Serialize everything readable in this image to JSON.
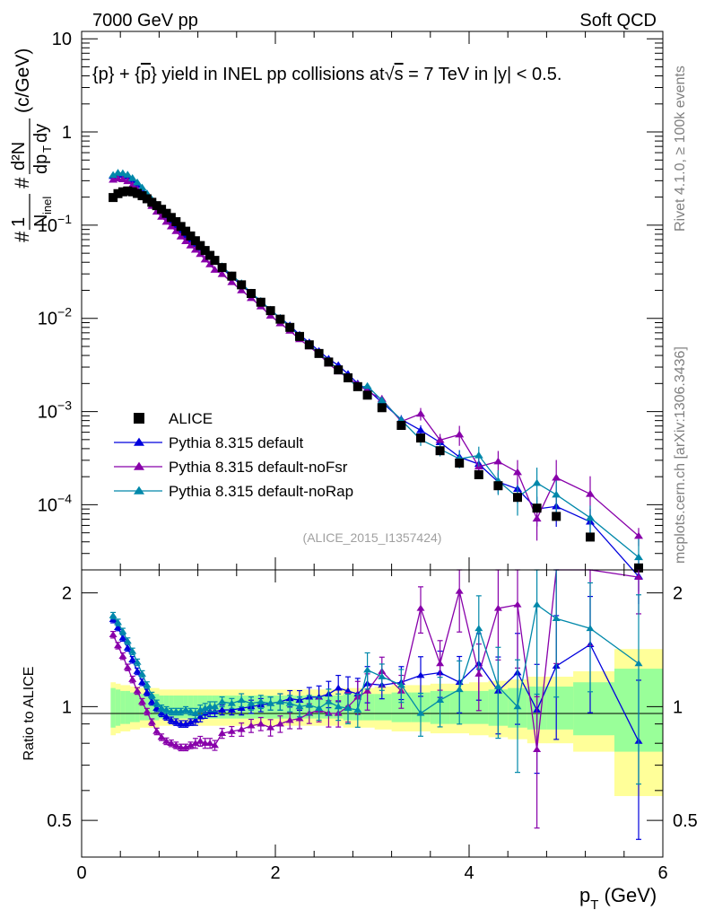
{
  "header": {
    "left": "7000 GeV pp",
    "right": "Soft QCD"
  },
  "title": {
    "part1": "{p} + {",
    "pbar": "p",
    "part2": "} yield in INEL pp collisions at",
    "sqrt": "√",
    "s": "s",
    "part3": " =  7 TeV in |y| < 0.5."
  },
  "side_labels": {
    "rivet": "Rivet 4.1.0, ≥ 100k events",
    "mcplots": "mcplots.cern.ch [arXiv:1306.3436]"
  },
  "analysis_tag": "(ALICE_2015_I1357424)",
  "ylabel_main": {
    "hash1": "#",
    "one": "1",
    "N": "N",
    "inel": "inel",
    "hash2": "#",
    "d2N": "d²N",
    "dp": "dp",
    "T": "T",
    "dy": "dy",
    "units": "(c/GeV)"
  },
  "ylabel_ratio": "Ratio to ALICE",
  "xlabel": {
    "p": "p",
    "T": "T",
    "rest": " (GeV)"
  },
  "legend": [
    {
      "label": "ALICE",
      "marker": "square",
      "color": "#000000"
    },
    {
      "label": "Pythia 8.315 default",
      "marker": "triangle",
      "color": "#0000dd"
    },
    {
      "label": "Pythia 8.315 default-noFsr",
      "marker": "triangle",
      "color": "#8800aa"
    },
    {
      "label": "Pythia 8.315 default-noRap",
      "marker": "triangle",
      "color": "#0088aa"
    }
  ],
  "colors": {
    "data": "#000000",
    "default": "#0000dd",
    "noFsr": "#8800aa",
    "noRap": "#0088aa",
    "band_inner": "#99ff99",
    "band_outer": "#ffff99"
  },
  "chart_data": {
    "type": "scatter",
    "xlabel": "p_T (GeV)",
    "ylabel": "1/N_inel d²N/dp_T dy (c/GeV)",
    "xlim": [
      0,
      6
    ],
    "ylim_main": [
      2e-05,
      12
    ],
    "ylim_ratio": [
      0.4,
      2.3
    ],
    "xticks": [
      "0",
      "2",
      "4",
      "6"
    ],
    "yticks_main": [
      "10^-4",
      "10^-3",
      "10^-2",
      "10^-1",
      "1",
      "10"
    ],
    "yticks_ratio": [
      "0.5",
      "1",
      "2"
    ],
    "x": [
      0.325,
      0.375,
      0.425,
      0.475,
      0.525,
      0.575,
      0.625,
      0.675,
      0.725,
      0.775,
      0.825,
      0.875,
      0.925,
      0.975,
      1.025,
      1.075,
      1.125,
      1.175,
      1.225,
      1.275,
      1.325,
      1.375,
      1.45,
      1.55,
      1.65,
      1.75,
      1.85,
      1.95,
      2.05,
      2.15,
      2.25,
      2.35,
      2.45,
      2.55,
      2.65,
      2.75,
      2.85,
      2.95,
      3.1,
      3.3,
      3.5,
      3.7,
      3.9,
      4.1,
      4.3,
      4.5,
      4.7,
      4.9,
      5.25,
      5.75
    ],
    "series": [
      {
        "name": "ALICE",
        "values": [
          0.198,
          0.218,
          0.228,
          0.233,
          0.228,
          0.219,
          0.207,
          0.192,
          0.176,
          0.162,
          0.148,
          0.134,
          0.121,
          0.109,
          0.0968,
          0.0862,
          0.0766,
          0.0681,
          0.0604,
          0.0535,
          0.0474,
          0.0419,
          0.0351,
          0.0284,
          0.0229,
          0.0185,
          0.0149,
          0.0121,
          0.0098,
          0.008,
          0.0064,
          0.0052,
          0.0042,
          0.0034,
          0.0028,
          0.0023,
          0.00185,
          0.0015,
          0.0011,
          0.00071,
          0.00052,
          0.00038,
          0.00028,
          0.00021,
          0.00016,
          0.00012,
          9.2e-05,
          7.5e-05,
          4.5e-05,
          2.1e-05
        ],
        "band_inner_low": [
          0.88,
          0.89,
          0.9,
          0.9,
          0.91,
          0.91,
          0.92,
          0.92,
          0.92,
          0.92,
          0.93,
          0.93,
          0.93,
          0.93,
          0.93,
          0.93,
          0.93,
          0.93,
          0.93,
          0.93,
          0.93,
          0.93,
          0.93,
          0.93,
          0.93,
          0.93,
          0.93,
          0.93,
          0.93,
          0.93,
          0.93,
          0.93,
          0.93,
          0.93,
          0.93,
          0.92,
          0.92,
          0.92,
          0.92,
          0.91,
          0.91,
          0.9,
          0.9,
          0.9,
          0.89,
          0.88,
          0.87,
          0.87,
          0.84,
          0.76
        ],
        "band_inner_high": [
          1.12,
          1.11,
          1.1,
          1.1,
          1.09,
          1.09,
          1.08,
          1.08,
          1.08,
          1.08,
          1.07,
          1.07,
          1.07,
          1.07,
          1.07,
          1.07,
          1.07,
          1.07,
          1.07,
          1.07,
          1.07,
          1.07,
          1.07,
          1.07,
          1.07,
          1.07,
          1.07,
          1.07,
          1.07,
          1.07,
          1.07,
          1.07,
          1.07,
          1.07,
          1.07,
          1.08,
          1.08,
          1.08,
          1.08,
          1.09,
          1.09,
          1.1,
          1.1,
          1.1,
          1.11,
          1.12,
          1.13,
          1.13,
          1.16,
          1.26
        ],
        "band_outer_low": [
          0.84,
          0.85,
          0.86,
          0.86,
          0.87,
          0.87,
          0.88,
          0.88,
          0.88,
          0.88,
          0.89,
          0.89,
          0.89,
          0.89,
          0.89,
          0.89,
          0.89,
          0.89,
          0.89,
          0.89,
          0.89,
          0.89,
          0.89,
          0.89,
          0.89,
          0.89,
          0.89,
          0.89,
          0.89,
          0.89,
          0.89,
          0.89,
          0.89,
          0.89,
          0.89,
          0.88,
          0.88,
          0.88,
          0.87,
          0.86,
          0.86,
          0.85,
          0.85,
          0.84,
          0.83,
          0.82,
          0.8,
          0.8,
          0.76,
          0.58
        ],
        "band_outer_high": [
          1.16,
          1.15,
          1.14,
          1.14,
          1.13,
          1.13,
          1.12,
          1.12,
          1.12,
          1.12,
          1.11,
          1.11,
          1.11,
          1.11,
          1.11,
          1.11,
          1.11,
          1.11,
          1.11,
          1.11,
          1.11,
          1.11,
          1.11,
          1.11,
          1.11,
          1.11,
          1.11,
          1.11,
          1.11,
          1.11,
          1.11,
          1.11,
          1.11,
          1.11,
          1.11,
          1.12,
          1.12,
          1.12,
          1.13,
          1.14,
          1.14,
          1.15,
          1.15,
          1.16,
          1.17,
          1.18,
          1.2,
          1.2,
          1.24,
          1.42
        ]
      },
      {
        "name": "Pythia 8.315 default",
        "ratio": [
          1.7,
          1.62,
          1.52,
          1.43,
          1.33,
          1.24,
          1.16,
          1.09,
          1.03,
          0.99,
          0.96,
          0.94,
          0.92,
          0.91,
          0.9,
          0.9,
          0.91,
          0.92,
          0.94,
          0.96,
          0.97,
          0.97,
          0.98,
          0.98,
          0.99,
          1.0,
          1.01,
          1.02,
          1.03,
          1.05,
          1.04,
          1.06,
          1.06,
          1.08,
          1.12,
          1.1,
          1.08,
          1.15,
          1.14,
          1.16,
          1.21,
          1.23,
          1.16,
          1.3,
          1.1,
          1.23,
          0.98,
          1.28,
          1.46,
          0.81
        ],
        "err": [
          0.02,
          0.02,
          0.02,
          0.02,
          0.02,
          0.02,
          0.02,
          0.02,
          0.02,
          0.02,
          0.02,
          0.02,
          0.02,
          0.02,
          0.02,
          0.02,
          0.02,
          0.03,
          0.03,
          0.03,
          0.03,
          0.03,
          0.03,
          0.03,
          0.04,
          0.04,
          0.04,
          0.04,
          0.05,
          0.05,
          0.06,
          0.06,
          0.07,
          0.08,
          0.08,
          0.09,
          0.1,
          0.11,
          0.08,
          0.1,
          0.12,
          0.14,
          0.17,
          0.2,
          0.23,
          0.27,
          0.32,
          0.36,
          0.34,
          0.45
        ]
      },
      {
        "name": "Pythia 8.315 default-noFsr",
        "ratio": [
          1.55,
          1.45,
          1.36,
          1.27,
          1.18,
          1.1,
          1.03,
          0.97,
          0.91,
          0.86,
          0.83,
          0.81,
          0.8,
          0.79,
          0.78,
          0.78,
          0.79,
          0.8,
          0.81,
          0.8,
          0.8,
          0.79,
          0.85,
          0.86,
          0.87,
          0.89,
          0.9,
          0.88,
          0.9,
          0.92,
          0.93,
          0.96,
          0.98,
          0.96,
          0.96,
          1.0,
          1.06,
          1.1,
          1.24,
          1.1,
          1.82,
          1.3,
          2.02,
          1.22,
          1.82,
          1.86,
          0.77,
          2.6,
          2.9,
          2.2
        ],
        "err": [
          0.02,
          0.02,
          0.02,
          0.02,
          0.02,
          0.02,
          0.02,
          0.02,
          0.02,
          0.02,
          0.02,
          0.02,
          0.02,
          0.02,
          0.02,
          0.02,
          0.02,
          0.03,
          0.03,
          0.03,
          0.03,
          0.03,
          0.03,
          0.03,
          0.04,
          0.04,
          0.04,
          0.05,
          0.05,
          0.05,
          0.06,
          0.06,
          0.07,
          0.08,
          0.08,
          0.09,
          0.1,
          0.11,
          0.09,
          0.1,
          0.14,
          0.15,
          0.22,
          0.2,
          0.27,
          0.32,
          0.38,
          0.5,
          0.5,
          0.2
        ]
      },
      {
        "name": "Pythia 8.315 default-noRap",
        "ratio": [
          1.74,
          1.67,
          1.58,
          1.49,
          1.4,
          1.31,
          1.22,
          1.14,
          1.07,
          1.02,
          0.99,
          0.98,
          0.97,
          0.97,
          0.97,
          0.98,
          0.97,
          0.96,
          0.98,
          0.99,
          1.0,
          1.0,
          1.03,
          1.02,
          1.04,
          1.02,
          1.03,
          1.02,
          1.03,
          1.02,
          1.0,
          1.01,
          0.99,
          1.03,
          1.0,
          0.99,
          0.98,
          1.25,
          1.2,
          1.14,
          0.96,
          1.04,
          1.11,
          1.61,
          1.13,
          1.0,
          1.86,
          1.71,
          1.61,
          1.3
        ],
        "err": [
          0.02,
          0.02,
          0.02,
          0.02,
          0.02,
          0.02,
          0.02,
          0.02,
          0.02,
          0.02,
          0.02,
          0.02,
          0.02,
          0.02,
          0.02,
          0.02,
          0.02,
          0.03,
          0.03,
          0.03,
          0.03,
          0.03,
          0.03,
          0.03,
          0.04,
          0.04,
          0.04,
          0.04,
          0.05,
          0.05,
          0.06,
          0.06,
          0.07,
          0.08,
          0.08,
          0.09,
          0.1,
          0.11,
          0.08,
          0.1,
          0.13,
          0.15,
          0.19,
          0.22,
          0.27,
          0.33,
          0.42,
          0.38,
          0.32,
          0.52
        ]
      }
    ]
  }
}
